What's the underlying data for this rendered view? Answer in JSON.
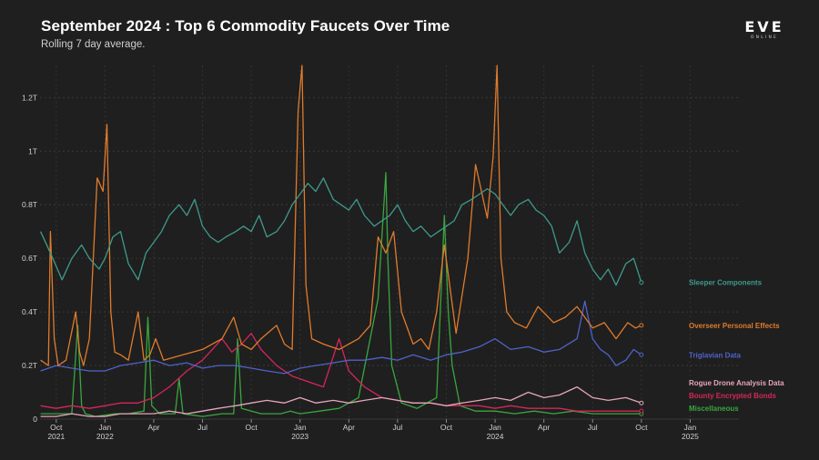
{
  "title": "September 2024 : Top 6 Commodity Faucets Over Time",
  "subtitle": "Rolling 7 day average.",
  "logo": {
    "main": "EVE",
    "sub": "ONLINE"
  },
  "chart_data": {
    "type": "line",
    "title": "September 2024 : Top 6 Commodity Faucets Over Time",
    "subtitle": "Rolling 7 day average.",
    "xlabel": "",
    "ylabel": "",
    "grid": true,
    "x_range": [
      2021.667,
      2025.25
    ],
    "ylim": [
      0,
      1.32
    ],
    "y_unit": "T (trillion ISK)",
    "y_ticks": [
      0,
      0.2,
      0.4,
      0.6,
      0.8,
      1.0,
      1.2
    ],
    "y_tick_labels": [
      "0",
      "0.2T",
      "0.4T",
      "0.6T",
      "0.8T",
      "1T",
      "1.2T"
    ],
    "x_ticks": [
      {
        "x": 2021.75,
        "label": "Oct",
        "year": "2021"
      },
      {
        "x": 2022.0,
        "label": "Jan",
        "year": "2022"
      },
      {
        "x": 2022.25,
        "label": "Apr",
        "year": ""
      },
      {
        "x": 2022.5,
        "label": "Jul",
        "year": ""
      },
      {
        "x": 2022.75,
        "label": "Oct",
        "year": ""
      },
      {
        "x": 2023.0,
        "label": "Jan",
        "year": "2023"
      },
      {
        "x": 2023.25,
        "label": "Apr",
        "year": ""
      },
      {
        "x": 2023.5,
        "label": "Jul",
        "year": ""
      },
      {
        "x": 2023.75,
        "label": "Oct",
        "year": ""
      },
      {
        "x": 2024.0,
        "label": "Jan",
        "year": "2024"
      },
      {
        "x": 2024.25,
        "label": "Apr",
        "year": ""
      },
      {
        "x": 2024.5,
        "label": "Jul",
        "year": ""
      },
      {
        "x": 2024.75,
        "label": "Oct",
        "year": ""
      },
      {
        "x": 2025.0,
        "label": "Jan",
        "year": "2025"
      }
    ],
    "series": [
      {
        "name": "Sleeper Components",
        "color": "#3f9a8c",
        "x": [
          2021.67,
          2021.72,
          2021.78,
          2021.83,
          2021.88,
          2021.92,
          2021.97,
          2022.0,
          2022.04,
          2022.08,
          2022.12,
          2022.17,
          2022.21,
          2022.25,
          2022.29,
          2022.33,
          2022.38,
          2022.42,
          2022.46,
          2022.5,
          2022.54,
          2022.58,
          2022.62,
          2022.67,
          2022.71,
          2022.75,
          2022.79,
          2022.83,
          2022.88,
          2022.92,
          2022.96,
          2023.0,
          2023.04,
          2023.08,
          2023.12,
          2023.17,
          2023.21,
          2023.25,
          2023.29,
          2023.33,
          2023.38,
          2023.42,
          2023.46,
          2023.5,
          2023.54,
          2023.58,
          2023.62,
          2023.67,
          2023.71,
          2023.75,
          2023.79,
          2023.83,
          2023.88,
          2023.92,
          2023.96,
          2024.0,
          2024.04,
          2024.08,
          2024.12,
          2024.17,
          2024.21,
          2024.25,
          2024.29,
          2024.33,
          2024.38,
          2024.42,
          2024.46,
          2024.5,
          2024.54,
          2024.58,
          2024.62,
          2024.67,
          2024.71,
          2024.75
        ],
        "values": [
          0.7,
          0.62,
          0.52,
          0.6,
          0.65,
          0.6,
          0.56,
          0.6,
          0.68,
          0.7,
          0.58,
          0.52,
          0.62,
          0.66,
          0.7,
          0.76,
          0.8,
          0.76,
          0.82,
          0.72,
          0.68,
          0.66,
          0.68,
          0.7,
          0.72,
          0.7,
          0.76,
          0.68,
          0.7,
          0.74,
          0.8,
          0.84,
          0.88,
          0.85,
          0.9,
          0.82,
          0.8,
          0.78,
          0.82,
          0.76,
          0.72,
          0.74,
          0.76,
          0.8,
          0.74,
          0.7,
          0.72,
          0.68,
          0.7,
          0.72,
          0.74,
          0.8,
          0.82,
          0.84,
          0.86,
          0.84,
          0.8,
          0.76,
          0.8,
          0.82,
          0.78,
          0.76,
          0.72,
          0.62,
          0.66,
          0.74,
          0.62,
          0.56,
          0.52,
          0.56,
          0.5,
          0.58,
          0.6,
          0.51
        ]
      },
      {
        "name": "Overseer Personal Effects",
        "color": "#e07b2c",
        "x": [
          2021.67,
          2021.71,
          2021.72,
          2021.74,
          2021.76,
          2021.8,
          2021.85,
          2021.87,
          2021.89,
          2021.92,
          2021.96,
          2021.99,
          2022.01,
          2022.03,
          2022.05,
          2022.08,
          2022.12,
          2022.17,
          2022.2,
          2022.23,
          2022.26,
          2022.3,
          2022.4,
          2022.5,
          2022.6,
          2022.66,
          2022.7,
          2022.75,
          2022.8,
          2022.88,
          2022.92,
          2022.96,
          2022.99,
          2023.01,
          2023.03,
          2023.06,
          2023.12,
          2023.2,
          2023.3,
          2023.36,
          2023.4,
          2023.44,
          2023.48,
          2023.52,
          2023.58,
          2023.62,
          2023.66,
          2023.7,
          2023.74,
          2023.8,
          2023.86,
          2023.9,
          2023.93,
          2023.96,
          2023.99,
          2024.01,
          2024.03,
          2024.06,
          2024.1,
          2024.16,
          2024.22,
          2024.3,
          2024.36,
          2024.42,
          2024.5,
          2024.56,
          2024.62,
          2024.68,
          2024.72,
          2024.75
        ],
        "values": [
          0.22,
          0.2,
          0.7,
          0.3,
          0.2,
          0.22,
          0.4,
          0.25,
          0.2,
          0.3,
          0.9,
          0.85,
          1.1,
          0.4,
          0.25,
          0.24,
          0.22,
          0.4,
          0.22,
          0.24,
          0.3,
          0.22,
          0.24,
          0.26,
          0.3,
          0.38,
          0.28,
          0.26,
          0.3,
          0.35,
          0.28,
          0.26,
          1.15,
          1.32,
          0.5,
          0.3,
          0.28,
          0.26,
          0.3,
          0.35,
          0.68,
          0.62,
          0.7,
          0.4,
          0.28,
          0.3,
          0.26,
          0.4,
          0.65,
          0.32,
          0.6,
          0.95,
          0.85,
          0.75,
          0.98,
          1.32,
          0.6,
          0.4,
          0.36,
          0.34,
          0.42,
          0.36,
          0.38,
          0.42,
          0.34,
          0.36,
          0.3,
          0.36,
          0.34,
          0.35
        ]
      },
      {
        "name": "Triglavian Data",
        "color": "#4e63c9",
        "x": [
          2021.67,
          2021.75,
          2021.83,
          2021.92,
          2022.0,
          2022.08,
          2022.17,
          2022.25,
          2022.33,
          2022.42,
          2022.5,
          2022.58,
          2022.67,
          2022.75,
          2022.83,
          2022.92,
          2023.0,
          2023.08,
          2023.17,
          2023.25,
          2023.33,
          2023.42,
          2023.5,
          2023.58,
          2023.67,
          2023.75,
          2023.83,
          2023.92,
          2024.0,
          2024.08,
          2024.17,
          2024.25,
          2024.33,
          2024.42,
          2024.46,
          2024.5,
          2024.54,
          2024.58,
          2024.62,
          2024.67,
          2024.71,
          2024.75
        ],
        "values": [
          0.18,
          0.2,
          0.19,
          0.18,
          0.18,
          0.2,
          0.21,
          0.22,
          0.2,
          0.21,
          0.19,
          0.2,
          0.2,
          0.19,
          0.18,
          0.17,
          0.19,
          0.2,
          0.21,
          0.22,
          0.22,
          0.23,
          0.22,
          0.24,
          0.22,
          0.24,
          0.25,
          0.27,
          0.3,
          0.26,
          0.27,
          0.25,
          0.26,
          0.3,
          0.44,
          0.3,
          0.26,
          0.24,
          0.2,
          0.22,
          0.26,
          0.24
        ]
      },
      {
        "name": "Rogue Drone Analysis Data",
        "color": "#e5a6bb",
        "x": [
          2021.67,
          2021.75,
          2021.83,
          2021.92,
          2022.0,
          2022.08,
          2022.17,
          2022.25,
          2022.33,
          2022.42,
          2022.5,
          2022.58,
          2022.67,
          2022.75,
          2022.83,
          2022.92,
          2023.0,
          2023.08,
          2023.17,
          2023.25,
          2023.33,
          2023.42,
          2023.5,
          2023.58,
          2023.67,
          2023.75,
          2023.83,
          2023.92,
          2024.0,
          2024.08,
          2024.17,
          2024.25,
          2024.33,
          2024.42,
          2024.5,
          2024.58,
          2024.67,
          2024.75
        ],
        "values": [
          0.01,
          0.01,
          0.02,
          0.01,
          0.01,
          0.02,
          0.02,
          0.02,
          0.03,
          0.02,
          0.03,
          0.04,
          0.05,
          0.06,
          0.07,
          0.06,
          0.08,
          0.06,
          0.07,
          0.06,
          0.07,
          0.08,
          0.07,
          0.06,
          0.06,
          0.05,
          0.06,
          0.07,
          0.08,
          0.07,
          0.1,
          0.08,
          0.09,
          0.12,
          0.08,
          0.07,
          0.08,
          0.06
        ]
      },
      {
        "name": "Bounty Encrypted Bonds",
        "color": "#d6265a",
        "x": [
          2021.67,
          2021.75,
          2021.83,
          2021.92,
          2022.0,
          2022.08,
          2022.17,
          2022.25,
          2022.33,
          2022.42,
          2022.5,
          2022.55,
          2022.6,
          2022.65,
          2022.7,
          2022.75,
          2022.8,
          2022.88,
          2022.96,
          2023.04,
          2023.12,
          2023.2,
          2023.25,
          2023.33,
          2023.42,
          2023.5,
          2023.58,
          2023.67,
          2023.75,
          2023.83,
          2023.92,
          2024.0,
          2024.08,
          2024.17,
          2024.25,
          2024.33,
          2024.42,
          2024.5,
          2024.58,
          2024.67,
          2024.75
        ],
        "values": [
          0.05,
          0.04,
          0.05,
          0.04,
          0.05,
          0.06,
          0.06,
          0.08,
          0.12,
          0.18,
          0.22,
          0.26,
          0.3,
          0.25,
          0.28,
          0.32,
          0.26,
          0.2,
          0.16,
          0.14,
          0.12,
          0.3,
          0.18,
          0.12,
          0.08,
          0.07,
          0.06,
          0.06,
          0.05,
          0.05,
          0.05,
          0.04,
          0.05,
          0.04,
          0.04,
          0.04,
          0.03,
          0.03,
          0.03,
          0.03,
          0.03
        ]
      },
      {
        "name": "Miscellaneous",
        "color": "#3aa63f",
        "x": [
          2021.67,
          2021.75,
          2021.83,
          2021.86,
          2021.88,
          2021.9,
          2021.95,
          2022.05,
          2022.12,
          2022.2,
          2022.22,
          2022.24,
          2022.28,
          2022.36,
          2022.38,
          2022.4,
          2022.5,
          2022.6,
          2022.66,
          2022.68,
          2022.7,
          2022.8,
          2022.9,
          2022.95,
          2023.0,
          2023.1,
          2023.2,
          2023.3,
          2023.4,
          2023.44,
          2023.45,
          2023.47,
          2023.52,
          2023.6,
          2023.7,
          2023.74,
          2023.76,
          2023.78,
          2023.82,
          2023.9,
          2024.0,
          2024.1,
          2024.2,
          2024.3,
          2024.4,
          2024.5,
          2024.6,
          2024.7,
          2024.75
        ],
        "values": [
          0.02,
          0.02,
          0.02,
          0.35,
          0.05,
          0.02,
          0.01,
          0.02,
          0.02,
          0.03,
          0.38,
          0.05,
          0.02,
          0.02,
          0.15,
          0.02,
          0.01,
          0.02,
          0.02,
          0.3,
          0.04,
          0.02,
          0.02,
          0.03,
          0.02,
          0.03,
          0.04,
          0.08,
          0.45,
          0.92,
          0.6,
          0.2,
          0.06,
          0.04,
          0.08,
          0.76,
          0.4,
          0.2,
          0.05,
          0.03,
          0.03,
          0.02,
          0.03,
          0.02,
          0.03,
          0.02,
          0.02,
          0.02,
          0.02
        ]
      }
    ]
  }
}
